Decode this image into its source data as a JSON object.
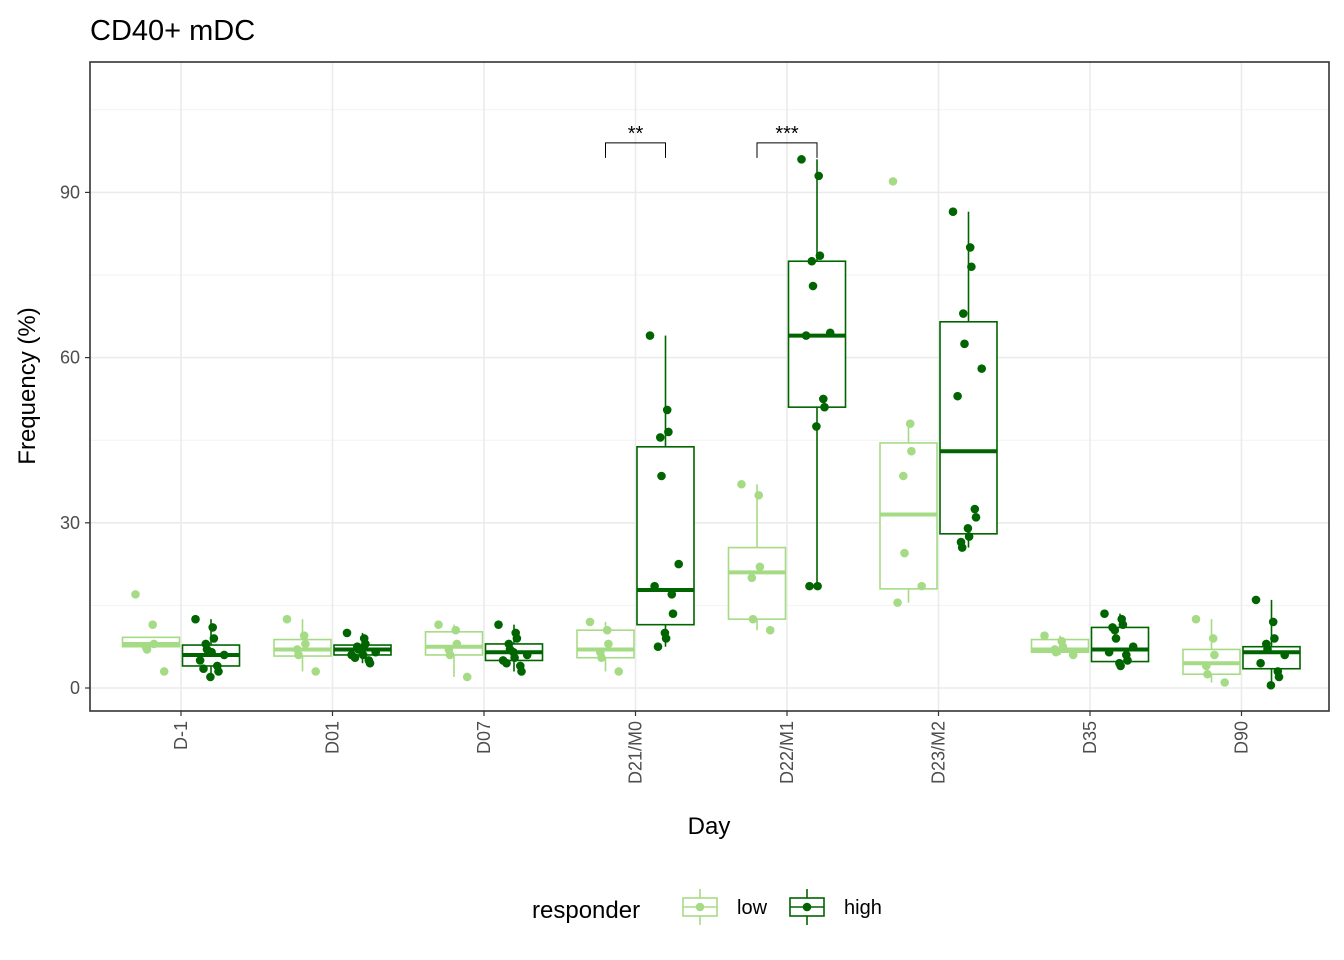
{
  "chart_data": {
    "type": "box",
    "title": "CD40+ mDC",
    "xlabel": "Day",
    "ylabel": "Frequency (%)",
    "ylim": [
      -2.5,
      115
    ],
    "yticks": [
      0,
      30,
      60,
      90
    ],
    "grid": true,
    "legend_title": "responder",
    "legend_position": "bottom",
    "categories": [
      "D-1",
      "D01",
      "D07",
      "D21/M0",
      "D22/M1",
      "D23/M2",
      "D35",
      "D90"
    ],
    "series": [
      {
        "name": "low",
        "color": "#a6db86",
        "boxes": [
          {
            "q1": 7.5,
            "median": 8.0,
            "q3": 9.2,
            "lower": 7.5,
            "upper": 9.2,
            "points": [
              17.0,
              11.5,
              8.0,
              7.5,
              7.0,
              3.0
            ]
          },
          {
            "q1": 5.8,
            "median": 7.0,
            "q3": 8.8,
            "lower": 3.0,
            "upper": 12.5,
            "points": [
              12.5,
              9.5,
              8.0,
              7.0,
              6.0,
              3.0
            ]
          },
          {
            "q1": 6.0,
            "median": 7.5,
            "q3": 10.2,
            "lower": 2.0,
            "upper": 11.5,
            "points": [
              11.5,
              10.5,
              8.0,
              7.0,
              6.0,
              2.0
            ]
          },
          {
            "q1": 5.5,
            "median": 7.0,
            "q3": 10.5,
            "lower": 3.0,
            "upper": 12.0,
            "points": [
              12.0,
              10.5,
              8.0,
              6.5,
              5.5,
              3.0
            ]
          },
          {
            "q1": 12.5,
            "median": 21.0,
            "q3": 25.5,
            "lower": 10.5,
            "upper": 37.0,
            "points": [
              37.0,
              35.0,
              22.0,
              20.0,
              12.5,
              10.5
            ]
          },
          {
            "q1": 18.0,
            "median": 31.5,
            "q3": 44.5,
            "lower": 15.5,
            "upper": 48.0,
            "points": [
              92.0,
              48.0,
              43.0,
              38.5,
              24.5,
              18.5,
              15.5
            ]
          },
          {
            "q1": 6.5,
            "median": 7.0,
            "q3": 8.8,
            "lower": 6.0,
            "upper": 9.5,
            "points": [
              9.5,
              8.5,
              7.5,
              7.0,
              6.5,
              6.0
            ]
          },
          {
            "q1": 2.5,
            "median": 4.5,
            "q3": 7.0,
            "lower": 1.0,
            "upper": 12.5,
            "points": [
              12.5,
              9.0,
              6.0,
              4.0,
              2.5,
              1.0
            ]
          }
        ]
      },
      {
        "name": "high",
        "color": "#006400",
        "boxes": [
          {
            "q1": 4.0,
            "median": 6.0,
            "q3": 7.8,
            "lower": 2.0,
            "upper": 12.5,
            "points": [
              12.5,
              11.0,
              9.0,
              8.0,
              7.0,
              6.0,
              5.0,
              4.0,
              3.0,
              2.0,
              6.5,
              3.5
            ]
          },
          {
            "q1": 6.0,
            "median": 7.0,
            "q3": 7.8,
            "lower": 4.5,
            "upper": 10.0,
            "points": [
              10.0,
              9.0,
              8.0,
              7.5,
              7.0,
              6.5,
              6.0,
              5.0,
              4.5,
              7.0,
              6.0,
              5.5
            ]
          },
          {
            "q1": 5.0,
            "median": 6.5,
            "q3": 8.0,
            "lower": 3.0,
            "upper": 11.5,
            "points": [
              11.5,
              10.0,
              9.0,
              8.0,
              7.0,
              6.0,
              5.0,
              4.0,
              3.0,
              6.5,
              5.5,
              4.5
            ]
          },
          {
            "q1": 11.5,
            "median": 17.8,
            "q3": 43.8,
            "lower": 7.5,
            "upper": 64.0,
            "points": [
              64.0,
              50.5,
              46.5,
              45.5,
              38.5,
              22.5,
              18.5,
              17.0,
              13.5,
              10.0,
              9.0,
              7.5
            ]
          },
          {
            "q1": 51.0,
            "median": 64.0,
            "q3": 77.5,
            "lower": 18.5,
            "upper": 96.0,
            "points": [
              96.0,
              93.0,
              78.5,
              77.5,
              73.0,
              64.5,
              64.0,
              52.5,
              51.0,
              47.5,
              18.5,
              18.5
            ]
          },
          {
            "q1": 28.0,
            "median": 43.0,
            "q3": 66.5,
            "lower": 25.5,
            "upper": 86.5,
            "points": [
              86.5,
              80.0,
              76.5,
              68.0,
              62.5,
              58.0,
              53.0,
              32.5,
              31.0,
              29.0,
              27.5,
              26.5,
              25.5
            ]
          },
          {
            "q1": 4.8,
            "median": 7.0,
            "q3": 11.0,
            "lower": 4.0,
            "upper": 13.5,
            "points": [
              13.5,
              12.5,
              11.5,
              10.5,
              9.0,
              7.5,
              6.5,
              6.0,
              5.0,
              4.5,
              4.0,
              11.0
            ]
          },
          {
            "q1": 3.5,
            "median": 6.5,
            "q3": 7.5,
            "lower": 0.5,
            "upper": 16.0,
            "points": [
              16.0,
              12.0,
              9.0,
              8.0,
              7.0,
              6.0,
              4.5,
              3.0,
              2.0,
              0.5
            ]
          }
        ]
      }
    ],
    "significance": [
      {
        "category": "D21/M0",
        "label": "**",
        "y": 99
      },
      {
        "category": "D22/M1",
        "label": "***",
        "y": 99
      }
    ]
  }
}
